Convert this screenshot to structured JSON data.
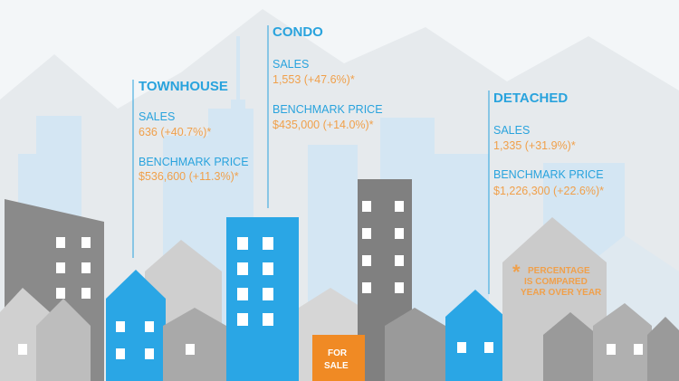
{
  "sections": [
    {
      "title": "TOWNHOUSE",
      "sales_label": "SALES",
      "sales_value": "636 (+40.7%)*",
      "price_label": "BENCHMARK PRICE",
      "price_value": "$536,600 (+11.3%)*"
    },
    {
      "title": "CONDO",
      "sales_label": "SALES",
      "sales_value": "1,553 (+47.6%)*",
      "price_label": "BENCHMARK PRICE",
      "price_value": "$435,000 (+14.0%)*"
    },
    {
      "title": "DETACHED",
      "sales_label": "SALES",
      "sales_value": "1,335 (+31.9%)*",
      "price_label": "BENCHMARK PRICE",
      "price_value": "$1,226,300 (+22.6%)*"
    }
  ],
  "footnote": {
    "mark": "*",
    "lines": [
      "PERCENTAGE",
      "IS COMPARED",
      "YEAR OVER YEAR"
    ]
  },
  "sign": {
    "lines": [
      "FOR",
      "SALE"
    ]
  }
}
